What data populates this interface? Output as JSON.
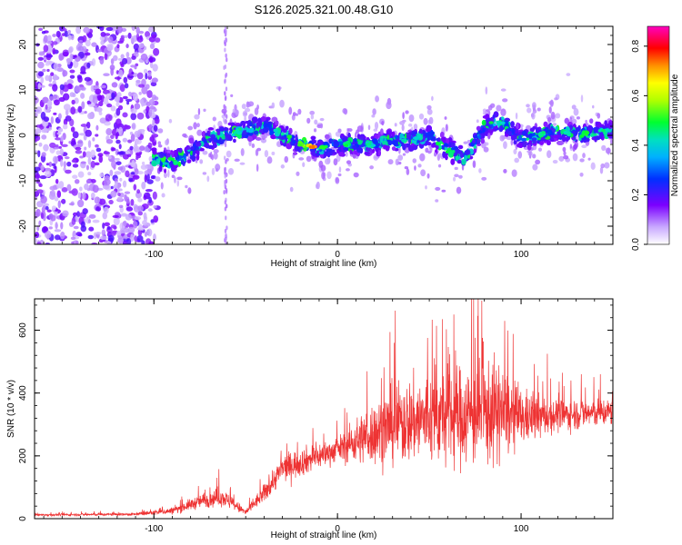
{
  "title": "S126.2025.321.00.48.G10",
  "chart_data": [
    {
      "type": "heatmap",
      "xlabel": "Height of straight line (km)",
      "ylabel": "Frequency (Hz)",
      "xlim": [
        -165,
        150
      ],
      "ylim": [
        -24,
        24
      ],
      "xticks": [
        -100,
        0,
        100
      ],
      "yticks": [
        -20,
        -10,
        0,
        10,
        20
      ],
      "colorbar": {
        "label": "Normalized spectral amplitude",
        "range": [
          0,
          0.88
        ],
        "ticks": [
          0.0,
          0.2,
          0.4,
          0.6,
          0.8
        ]
      },
      "ridge": [
        {
          "x": -100,
          "y": -5
        },
        {
          "x": -90,
          "y": -6
        },
        {
          "x": -80,
          "y": -4
        },
        {
          "x": -70,
          "y": -1
        },
        {
          "x": -60,
          "y": 0
        },
        {
          "x": -50,
          "y": 1
        },
        {
          "x": -40,
          "y": 2
        },
        {
          "x": -30,
          "y": 0
        },
        {
          "x": -20,
          "y": -2
        },
        {
          "x": -10,
          "y": -3
        },
        {
          "x": 0,
          "y": -2
        },
        {
          "x": 10,
          "y": -2
        },
        {
          "x": 20,
          "y": -2
        },
        {
          "x": 30,
          "y": -1
        },
        {
          "x": 40,
          "y": -1
        },
        {
          "x": 50,
          "y": 0
        },
        {
          "x": 60,
          "y": -3
        },
        {
          "x": 70,
          "y": -5
        },
        {
          "x": 80,
          "y": 2
        },
        {
          "x": 90,
          "y": 3
        },
        {
          "x": 100,
          "y": -1
        },
        {
          "x": 110,
          "y": 0
        },
        {
          "x": 120,
          "y": 1
        },
        {
          "x": 130,
          "y": 0
        },
        {
          "x": 140,
          "y": 1
        },
        {
          "x": 150,
          "y": 1
        }
      ]
    },
    {
      "type": "line",
      "xlabel": "Height of straight line (km)",
      "ylabel": "SNR (10 * v/v)",
      "xlim": [
        -165,
        150
      ],
      "ylim": [
        0,
        700
      ],
      "xticks": [
        -100,
        0,
        100
      ],
      "yticks": [
        0,
        200,
        400,
        600
      ],
      "series": [
        {
          "name": "SNR",
          "color": "#ee3333",
          "envelope": [
            {
              "x": -165,
              "mean": 12,
              "spread": 5
            },
            {
              "x": -110,
              "mean": 14,
              "spread": 6
            },
            {
              "x": -90,
              "mean": 25,
              "spread": 15
            },
            {
              "x": -75,
              "mean": 55,
              "spread": 30
            },
            {
              "x": -63,
              "mean": 70,
              "spread": 40
            },
            {
              "x": -50,
              "mean": 20,
              "spread": 15
            },
            {
              "x": -40,
              "mean": 80,
              "spread": 40
            },
            {
              "x": -30,
              "mean": 160,
              "spread": 60
            },
            {
              "x": -15,
              "mean": 190,
              "spread": 60
            },
            {
              "x": 0,
              "mean": 220,
              "spread": 50
            },
            {
              "x": 15,
              "mean": 260,
              "spread": 120
            },
            {
              "x": 30,
              "mean": 300,
              "spread": 170
            },
            {
              "x": 50,
              "mean": 320,
              "spread": 200
            },
            {
              "x": 70,
              "mean": 330,
              "spread": 220
            },
            {
              "x": 85,
              "mean": 340,
              "spread": 230
            },
            {
              "x": 100,
              "mean": 320,
              "spread": 120
            },
            {
              "x": 120,
              "mean": 330,
              "spread": 70
            },
            {
              "x": 150,
              "mean": 340,
              "spread": 60
            }
          ]
        }
      ]
    }
  ]
}
